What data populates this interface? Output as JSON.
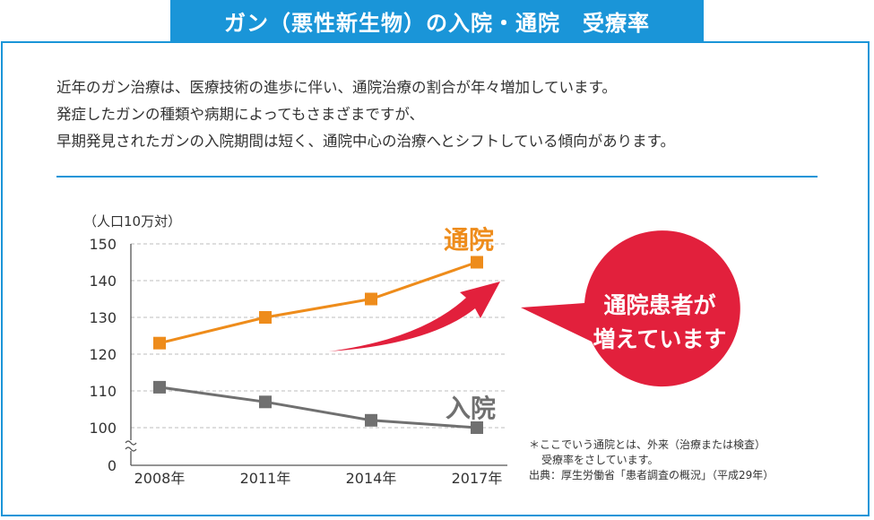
{
  "header": {
    "title": "ガン（悪性新生物）の入院・通院　受療率"
  },
  "description": [
    "近年のガン治療は、医療技術の進歩に伴い、通院治療の割合が年々増加しています。",
    "発症したガンの種類や病期によってもさまざまですが、",
    "早期発見されたガンの入院期間は短く、通院中心の治療へとシフトしている傾向があります。"
  ],
  "callout": {
    "line1": "通院患者が",
    "line2": "増えています"
  },
  "notes": {
    "line1": "＊ここでいう通院とは、外来（治療または検査）",
    "line2": "受療率をさしています。",
    "source": "出典：厚生労働省「患者調査の概況」（平成29年）"
  },
  "colors": {
    "accent": "#1a95d8",
    "outpatient": "#ee8c1b",
    "inpatient": "#707070",
    "callout": "#e2203c"
  },
  "chart_data": {
    "type": "line",
    "unit_label": "（人口10万対）",
    "categories": [
      "2008年",
      "2011年",
      "2014年",
      "2017年"
    ],
    "series": [
      {
        "name": "通院",
        "values": [
          123,
          130,
          135,
          145
        ],
        "color": "#ee8c1b",
        "marker": "square"
      },
      {
        "name": "入院",
        "values": [
          111,
          107,
          102,
          100
        ],
        "color": "#707070",
        "marker": "square"
      }
    ],
    "y_ticks": [
      "150",
      "140",
      "130",
      "120",
      "110",
      "100",
      "0"
    ],
    "y_axis_break": true,
    "ylim": [
      100,
      150
    ],
    "grid": true
  }
}
